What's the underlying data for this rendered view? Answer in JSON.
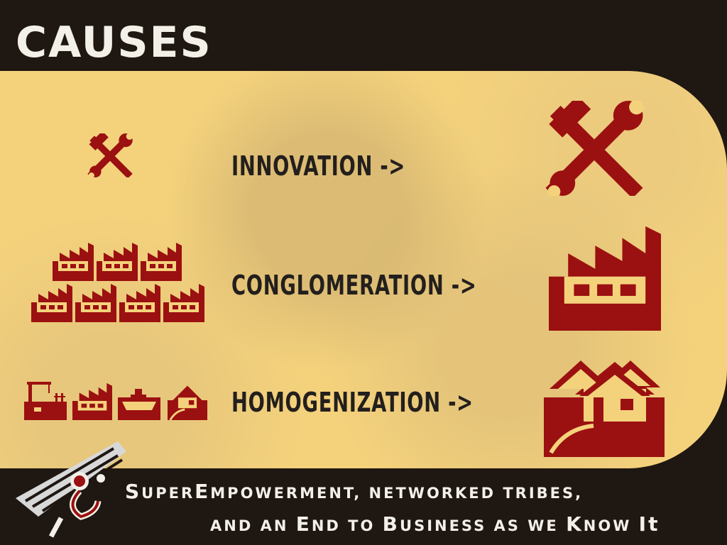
{
  "slide": {
    "title": "Causes"
  },
  "rows": [
    {
      "label": "Innovation",
      "arrow": "->"
    },
    {
      "label": "Conglomeration",
      "arrow": "->"
    },
    {
      "label": "Homogenization",
      "arrow": "->"
    }
  ],
  "footer": {
    "line1_a_cap": "S",
    "line1_a_rest": "uper",
    "line1_b_cap": "E",
    "line1_b_rest": "mpowerment, Networked Tribes,",
    "line2_a": "and an ",
    "line2_b_cap": "E",
    "line2_b_rest": "nd to ",
    "line2_c_cap": "B",
    "line2_c_rest": "usiness as we ",
    "line2_d_cap": "K",
    "line2_d_rest": "now ",
    "line2_e_cap": "It"
  },
  "colors": {
    "background": "#1f1712",
    "panel": "#f4d27c",
    "icon_red": "#9b1010",
    "label_text": "#231f1d",
    "title_text": "#f3f0e8"
  },
  "icons": [
    "hammer-wrench-icon",
    "factory-icon",
    "construction-crane-icon",
    "cargo-ship-icon",
    "house-icon",
    "suburban-houses-icon",
    "network-logo-icon"
  ]
}
